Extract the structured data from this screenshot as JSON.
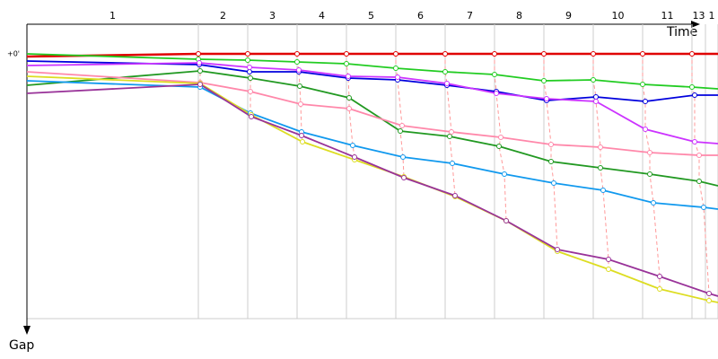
{
  "chart_data": {
    "type": "line",
    "x_label": "Time",
    "y_label": "Gap",
    "laps": [
      "1",
      "2",
      "3",
      "4",
      "5",
      "6",
      "7",
      "8",
      "9",
      "10",
      "11",
      "13",
      "1"
    ],
    "lap_ends": [
      191,
      246,
      301,
      356,
      411,
      466,
      521,
      576,
      631,
      686,
      741,
      756,
      770
    ],
    "xlim": [
      0,
      770
    ],
    "ylim": [
      0,
      30
    ],
    "yticks": [
      {
        "value": 0,
        "label": "+0'"
      }
    ],
    "series": [
      {
        "color": "#e00000",
        "x": [
          0,
          191,
          246,
          301,
          356,
          411,
          466,
          521,
          576,
          631,
          686,
          741,
          770
        ],
        "values": [
          0.3,
          0,
          0,
          0,
          0,
          0,
          0,
          0,
          0,
          0,
          0,
          0,
          0
        ]
      },
      {
        "color": "#22cc22",
        "x": [
          0,
          191,
          246,
          301,
          356,
          411,
          466,
          521,
          576,
          631,
          686,
          741,
          770
        ],
        "values": [
          0,
          0.6,
          0.7,
          0.9,
          1.1,
          1.6,
          2.0,
          2.3,
          3.0,
          2.9,
          3.4,
          3.7,
          3.9
        ]
      },
      {
        "color": "#0000dd",
        "x": [
          0,
          192,
          248,
          303,
          358,
          413,
          468,
          523,
          579,
          634,
          689,
          744,
          770
        ],
        "values": [
          0.8,
          1.2,
          2.0,
          2.0,
          2.7,
          2.9,
          3.5,
          4.2,
          5.2,
          4.8,
          5.3,
          4.6,
          4.6
        ]
      },
      {
        "color": "#cc33ff",
        "x": [
          0,
          192,
          248,
          303,
          358,
          413,
          468,
          523,
          579,
          634,
          689,
          744,
          770
        ],
        "values": [
          1.3,
          1.0,
          1.5,
          1.8,
          2.5,
          2.6,
          3.3,
          4.4,
          5.0,
          5.3,
          8.4,
          9.8,
          10.0
        ]
      },
      {
        "color": "#229922",
        "x": [
          0,
          193,
          249,
          304,
          359,
          416,
          471,
          526,
          584,
          639,
          694,
          749,
          770
        ],
        "values": [
          3.5,
          1.9,
          2.7,
          3.6,
          4.9,
          8.6,
          9.2,
          10.3,
          12.0,
          12.7,
          13.4,
          14.2,
          14.7
        ]
      },
      {
        "color": "#ff88aa",
        "x": [
          0,
          193,
          249,
          305,
          359,
          418,
          473,
          528,
          584,
          639,
          694,
          749,
          770
        ],
        "values": [
          2.0,
          3.2,
          4.2,
          5.6,
          6.1,
          8.0,
          8.7,
          9.3,
          10.1,
          10.4,
          11.0,
          11.3,
          11.3
        ]
      },
      {
        "color": "#1199ee",
        "x": [
          0,
          193,
          249,
          306,
          363,
          419,
          474,
          532,
          587,
          642,
          698,
          754,
          770
        ],
        "values": [
          3.0,
          3.7,
          6.6,
          8.7,
          10.2,
          11.5,
          12.2,
          13.4,
          14.4,
          15.2,
          16.6,
          17.1,
          17.3
        ]
      },
      {
        "color": "#dddd22",
        "x": [
          0,
          193,
          250,
          307,
          365,
          420,
          477,
          534,
          591,
          648,
          705,
          760,
          770
        ],
        "values": [
          2.5,
          3.3,
          6.8,
          9.8,
          11.8,
          13.7,
          15.9,
          18.6,
          22.0,
          24.0,
          26.2,
          27.5,
          27.7
        ]
      },
      {
        "color": "#993399",
        "x": [
          0,
          193,
          250,
          306,
          365,
          420,
          477,
          534,
          591,
          648,
          705,
          760,
          770
        ],
        "values": [
          4.4,
          3.4,
          7.0,
          9.1,
          11.5,
          13.8,
          15.8,
          18.6,
          21.8,
          22.9,
          24.8,
          26.7,
          27.0
        ]
      }
    ]
  }
}
